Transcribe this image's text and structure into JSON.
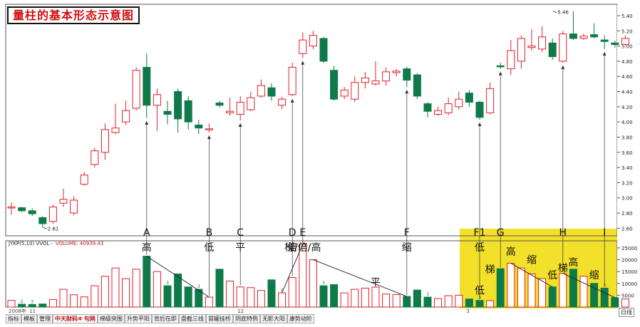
{
  "title": "量柱的基本形态示意图",
  "indicator_label": "JYKP(5,10)  VVOL -",
  "volume_readout": "VOLUME: 40939.43",
  "toolbar": {
    "tabs": [
      "指标",
      "模板",
      "管理"
    ],
    "brand": "中天财码❋ 句网",
    "items": [
      "梯级突围",
      "升势平阳",
      "背后在即",
      "盘截三线",
      "苗罐挂桥",
      "阴底特例",
      "无影大阳",
      "康势动阶"
    ],
    "daily": "日线"
  },
  "chart_data": {
    "type": "candlestick",
    "price_axis": {
      "ylim": [
        2.5,
        5.55
      ],
      "ticks": [
        2.6,
        2.8,
        3.0,
        3.2,
        3.4,
        3.6,
        3.8,
        4.0,
        4.2,
        4.4,
        4.6,
        4.8,
        5.0,
        5.2,
        5.4
      ]
    },
    "volume_axis": {
      "ylim": [
        0,
        28000
      ],
      "ticks": [
        5000,
        10000,
        15000,
        20000,
        25000
      ]
    },
    "date_labels": [
      {
        "index": 0,
        "text": "2008年"
      },
      {
        "index": 2,
        "text": "11"
      },
      {
        "index": 22,
        "text": "12"
      },
      {
        "index": 44,
        "text": "3"
      }
    ],
    "price_annotations": [
      {
        "index": 3,
        "price": 2.61,
        "text": "2.61"
      },
      {
        "index": 52,
        "price": 5.46,
        "text": "5.46"
      }
    ],
    "candles": [
      {
        "o": 2.88,
        "h": 2.94,
        "l": 2.78,
        "c": 2.88,
        "v": 2800
      },
      {
        "o": 2.87,
        "h": 2.88,
        "l": 2.81,
        "c": 2.83,
        "v": 1200
      },
      {
        "o": 2.83,
        "h": 2.86,
        "l": 2.76,
        "c": 2.79,
        "v": 1100
      },
      {
        "o": 2.74,
        "h": 2.76,
        "l": 2.61,
        "c": 2.66,
        "v": 1300
      },
      {
        "o": 2.69,
        "h": 2.91,
        "l": 2.66,
        "c": 2.88,
        "v": 3200
      },
      {
        "o": 2.93,
        "h": 3.12,
        "l": 2.88,
        "c": 2.98,
        "v": 7500
      },
      {
        "o": 2.8,
        "h": 3.02,
        "l": 2.77,
        "c": 2.97,
        "v": 5200
      },
      {
        "o": 3.18,
        "h": 3.34,
        "l": 3.16,
        "c": 3.3,
        "v": 4300
      },
      {
        "o": 3.44,
        "h": 3.66,
        "l": 3.4,
        "c": 3.62,
        "v": 9000
      },
      {
        "o": 3.6,
        "h": 3.98,
        "l": 3.5,
        "c": 3.9,
        "v": 13000
      },
      {
        "o": 3.86,
        "h": 4.24,
        "l": 3.84,
        "c": 3.92,
        "v": 16500
      },
      {
        "o": 4.0,
        "h": 4.28,
        "l": 3.96,
        "c": 4.15,
        "v": 12000
      },
      {
        "o": 4.18,
        "h": 4.72,
        "l": 4.15,
        "c": 4.68,
        "v": 16000
      },
      {
        "o": 4.72,
        "h": 4.9,
        "l": 4.05,
        "c": 4.22,
        "v": 21500
      },
      {
        "o": 4.22,
        "h": 4.44,
        "l": 3.88,
        "c": 4.36,
        "v": 15000
      },
      {
        "o": 4.14,
        "h": 4.28,
        "l": 3.97,
        "c": 4.1,
        "v": 9000
      },
      {
        "o": 4.4,
        "h": 4.44,
        "l": 3.86,
        "c": 4.04,
        "v": 14000
      },
      {
        "o": 4.28,
        "h": 4.34,
        "l": 3.9,
        "c": 4.0,
        "v": 8500
      },
      {
        "o": 3.96,
        "h": 4.03,
        "l": 3.84,
        "c": 3.92,
        "v": 7500
      },
      {
        "o": 3.9,
        "h": 3.98,
        "l": 3.86,
        "c": 3.91,
        "v": 4200
      },
      {
        "o": 4.25,
        "h": 4.28,
        "l": 4.19,
        "c": 4.22,
        "v": 16000
      },
      {
        "o": 4.12,
        "h": 4.32,
        "l": 4.08,
        "c": 4.14,
        "v": 11000
      },
      {
        "o": 4.1,
        "h": 4.34,
        "l": 4.02,
        "c": 4.26,
        "v": 8500
      },
      {
        "o": 4.16,
        "h": 4.4,
        "l": 4.14,
        "c": 4.32,
        "v": 8200
      },
      {
        "o": 4.34,
        "h": 4.56,
        "l": 4.32,
        "c": 4.48,
        "v": 7000
      },
      {
        "o": 4.45,
        "h": 4.51,
        "l": 4.28,
        "c": 4.34,
        "v": 11500
      },
      {
        "o": 4.22,
        "h": 4.33,
        "l": 4.17,
        "c": 4.3,
        "v": 6000
      },
      {
        "o": 4.36,
        "h": 4.78,
        "l": 4.34,
        "c": 4.72,
        "v": 12500
      },
      {
        "o": 4.9,
        "h": 5.18,
        "l": 4.84,
        "c": 5.08,
        "v": 26500
      },
      {
        "o": 5.0,
        "h": 5.2,
        "l": 4.96,
        "c": 5.14,
        "v": 20000
      },
      {
        "o": 5.1,
        "h": 5.12,
        "l": 4.78,
        "c": 4.8,
        "v": 9000
      },
      {
        "o": 4.68,
        "h": 4.74,
        "l": 4.28,
        "c": 4.3,
        "v": 9500
      },
      {
        "o": 4.34,
        "h": 4.46,
        "l": 4.3,
        "c": 4.42,
        "v": 6000
      },
      {
        "o": 4.3,
        "h": 4.6,
        "l": 4.26,
        "c": 4.52,
        "v": 7500
      },
      {
        "o": 4.52,
        "h": 4.66,
        "l": 4.44,
        "c": 4.58,
        "v": 8000
      },
      {
        "o": 4.5,
        "h": 4.8,
        "l": 4.48,
        "c": 4.54,
        "v": 8400
      },
      {
        "o": 4.54,
        "h": 4.72,
        "l": 4.48,
        "c": 4.66,
        "v": 5500
      },
      {
        "o": 4.65,
        "h": 4.7,
        "l": 4.6,
        "c": 4.67,
        "v": 5300
      },
      {
        "o": 4.7,
        "h": 4.73,
        "l": 4.46,
        "c": 4.55,
        "v": 4500
      },
      {
        "o": 4.62,
        "h": 4.64,
        "l": 4.3,
        "c": 4.34,
        "v": 7200
      },
      {
        "o": 4.24,
        "h": 4.26,
        "l": 4.06,
        "c": 4.14,
        "v": 4200
      },
      {
        "o": 4.1,
        "h": 4.2,
        "l": 4.08,
        "c": 4.15,
        "v": 3600
      },
      {
        "o": 4.12,
        "h": 4.32,
        "l": 4.09,
        "c": 4.24,
        "v": 4800
      },
      {
        "o": 4.2,
        "h": 4.4,
        "l": 4.16,
        "c": 4.3,
        "v": 5000
      },
      {
        "o": 4.38,
        "h": 4.42,
        "l": 4.2,
        "c": 4.26,
        "v": 3400
      },
      {
        "o": 4.26,
        "h": 4.28,
        "l": 4.03,
        "c": 4.06,
        "v": 2800
      },
      {
        "o": 4.12,
        "h": 4.52,
        "l": 4.1,
        "c": 4.44,
        "v": 2700
      },
      {
        "o": 4.74,
        "h": 4.78,
        "l": 4.7,
        "c": 4.73,
        "v": 16200
      },
      {
        "o": 4.7,
        "h": 5.08,
        "l": 4.62,
        "c": 4.94,
        "v": 18500
      },
      {
        "o": 4.8,
        "h": 5.14,
        "l": 4.7,
        "c": 5.1,
        "v": 16500
      },
      {
        "o": 4.98,
        "h": 5.22,
        "l": 4.94,
        "c": 5.0,
        "v": 14000
      },
      {
        "o": 4.96,
        "h": 5.26,
        "l": 4.92,
        "c": 5.12,
        "v": 12000
      },
      {
        "o": 5.04,
        "h": 5.1,
        "l": 4.82,
        "c": 4.86,
        "v": 8500
      },
      {
        "o": 4.8,
        "h": 5.2,
        "l": 4.78,
        "c": 5.16,
        "v": 14200
      },
      {
        "o": 5.16,
        "h": 5.46,
        "l": 5.08,
        "c": 5.1,
        "v": 16000
      },
      {
        "o": 5.1,
        "h": 5.16,
        "l": 5.08,
        "c": 5.13,
        "v": 13000
      },
      {
        "o": 5.15,
        "h": 5.3,
        "l": 5.1,
        "c": 5.12,
        "v": 10000
      },
      {
        "o": 5.08,
        "h": 5.14,
        "l": 4.96,
        "c": 5.06,
        "v": 8000
      },
      {
        "o": 5.04,
        "h": 5.07,
        "l": 4.98,
        "c": 5.02,
        "v": 4000
      },
      {
        "o": 5.02,
        "h": 5.14,
        "l": 5.0,
        "c": 5.1,
        "v": 3400
      }
    ],
    "annotations": [
      {
        "index": 13,
        "letter": "A",
        "label": "高"
      },
      {
        "index": 19,
        "letter": "B",
        "label": "低"
      },
      {
        "index": 22,
        "letter": "C",
        "label": "平"
      },
      {
        "index": 27,
        "letter": "D",
        "label": "倍"
      },
      {
        "index": 28,
        "letter": "E",
        "label": "梯/倍/高"
      },
      {
        "index": 38,
        "letter": "F",
        "label": "缩"
      },
      {
        "index": 45,
        "letter": "F1",
        "label": "低"
      },
      {
        "index": 47,
        "letter": "G",
        "label": ""
      },
      {
        "index": 53,
        "letter": "H",
        "label": ""
      },
      {
        "index": 57,
        "letter": "I",
        "label": ""
      }
    ],
    "volume_notes": [
      {
        "index": 35,
        "v": 9000,
        "text": "平"
      },
      {
        "index": 45,
        "v": 5500,
        "text": "低"
      },
      {
        "index": 46,
        "v": 14500,
        "text": "梯"
      },
      {
        "index": 48,
        "v": 22000,
        "text": "高"
      },
      {
        "index": 50,
        "v": 18500,
        "text": "缩"
      },
      {
        "index": 52,
        "v": 12000,
        "text": "低"
      },
      {
        "index": 53,
        "v": 15000,
        "text": "梯"
      },
      {
        "index": 54,
        "v": 17500,
        "text": "高"
      },
      {
        "index": 56,
        "v": 12000,
        "text": "缩"
      }
    ],
    "volume_marks": [
      {
        "index": 1,
        "text": "2"
      },
      {
        "index": 2,
        "text": "3"
      },
      {
        "index": 15,
        "text": "3"
      },
      {
        "index": 18,
        "text": "3"
      },
      {
        "index": 26,
        "text": "2"
      },
      {
        "index": 30,
        "text": "3"
      },
      {
        "index": 40,
        "text": "3"
      },
      {
        "index": 45,
        "text": "3"
      },
      {
        "index": 57,
        "text": "3"
      }
    ],
    "trend_lines": [
      {
        "from": 13,
        "to": 19
      },
      {
        "from": 26,
        "to": 28
      },
      {
        "from": 29,
        "to": 38
      },
      {
        "from": 48,
        "to": 52
      },
      {
        "from": 53,
        "to": 58
      }
    ]
  }
}
